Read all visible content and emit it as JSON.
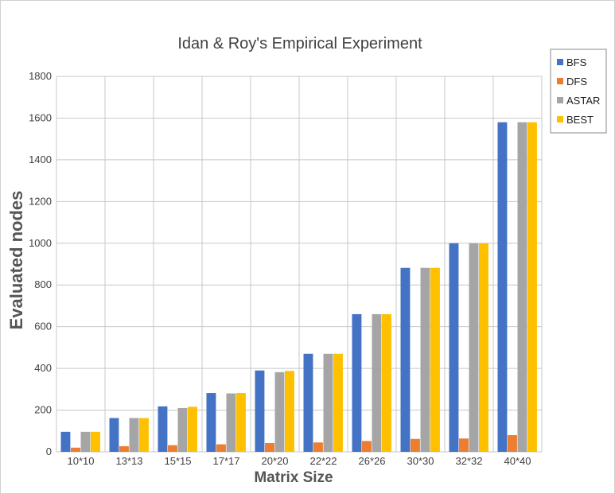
{
  "chart_data": {
    "type": "bar",
    "title": "Idan & Roy's Empirical Experiment",
    "xlabel": "Matrix Size",
    "ylabel": "Evaluated nodes",
    "categories": [
      "10*10",
      "13*13",
      "15*15",
      "17*17",
      "20*20",
      "22*22",
      "26*26",
      "30*30",
      "32*32",
      "40*40"
    ],
    "series": [
      {
        "name": "BFS",
        "color": "#4472c4",
        "values": [
          96,
          162,
          218,
          282,
          390,
          470,
          660,
          882,
          1000,
          1580
        ]
      },
      {
        "name": "DFS",
        "color": "#ed7d31",
        "values": [
          20,
          27,
          32,
          36,
          42,
          45,
          52,
          62,
          64,
          80
        ]
      },
      {
        "name": "ASTAR",
        "color": "#a5a5a5",
        "values": [
          96,
          162,
          210,
          280,
          382,
          470,
          660,
          882,
          1000,
          1580
        ]
      },
      {
        "name": "BEST",
        "color": "#ffc000",
        "values": [
          96,
          162,
          216,
          282,
          388,
          470,
          660,
          882,
          1000,
          1580
        ]
      }
    ],
    "ylim": [
      0,
      1800
    ],
    "yticks": [
      0,
      200,
      400,
      600,
      800,
      1000,
      1200,
      1400,
      1600,
      1800
    ],
    "grid": true,
    "legend": "right"
  }
}
